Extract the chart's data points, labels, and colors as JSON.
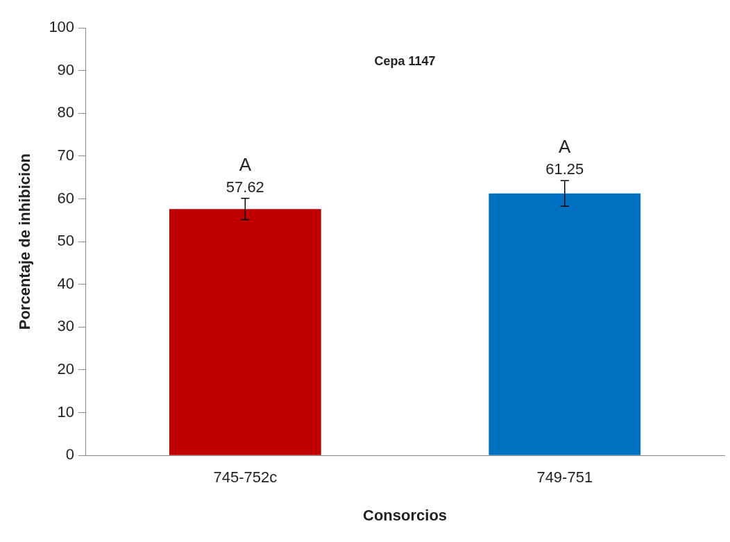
{
  "chart_data": {
    "type": "bar",
    "title": "Cepa 1147",
    "xlabel": "Consorcios",
    "ylabel": "Porcentaje de inhibicion",
    "categories": [
      "745-752c",
      "749-751"
    ],
    "values": [
      57.62,
      61.25
    ],
    "colors": [
      "#c00000",
      "#0070c0"
    ],
    "errors": [
      2.5,
      3
    ],
    "value_labels": [
      "57.62",
      "61.25"
    ],
    "annotations": [
      "A",
      "A"
    ],
    "ylim": [
      0,
      100
    ],
    "yticks": [
      0,
      10,
      20,
      30,
      40,
      50,
      60,
      70,
      80,
      90,
      100
    ],
    "grid": false,
    "legend": false
  }
}
